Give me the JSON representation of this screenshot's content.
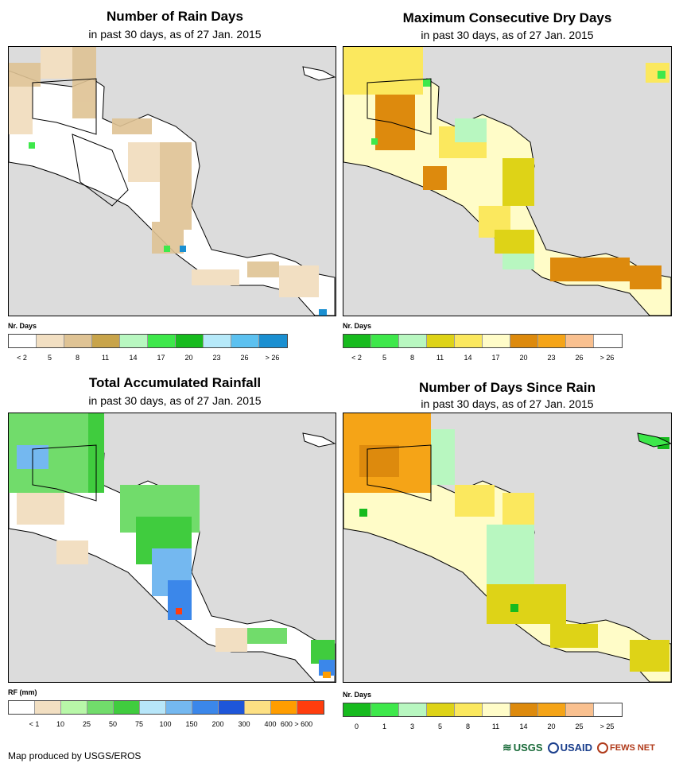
{
  "panels": [
    {
      "title": "Number of Rain Days",
      "subtitle": "in past 30 days, as of 27 Jan. 2015",
      "legend_label": "Nr. Days",
      "legend_colors": [
        "#ffffff",
        "#f2dfc2",
        "#dfc394",
        "#c8a44a",
        "#b8f7c0",
        "#3ee84b",
        "#17bb1e",
        "#b6e9f9",
        "#5cc1f0",
        "#1a8fd1"
      ],
      "legend_ticks": [
        "< 2",
        "5",
        "8",
        "11",
        "14",
        "17",
        "20",
        "23",
        "26",
        "> 26"
      ]
    },
    {
      "title": "Maximum Consecutive Dry Days",
      "subtitle": "in past 30 days, as of 27 Jan. 2015",
      "legend_label": "Nr. Days",
      "legend_colors": [
        "#17bb1e",
        "#3ee84b",
        "#b8f7c0",
        "#ded317",
        "#fbe85e",
        "#fffcc8",
        "#dd8a0d",
        "#f5a417",
        "#f9c08f",
        "#ffffff"
      ],
      "legend_ticks": [
        "< 2",
        "5",
        "8",
        "11",
        "14",
        "17",
        "20",
        "23",
        "26",
        "> 26"
      ]
    },
    {
      "title": "Total Accumulated Rainfall",
      "subtitle": "in past 30 days, as of 27 Jan. 2015",
      "legend_label": "RF (mm)",
      "legend_colors": [
        "#ffffff",
        "#f2dfc2",
        "#b8f7a8",
        "#71dc6b",
        "#40cc3e",
        "#b7e6f9",
        "#74b8f0",
        "#3b87ea",
        "#1e56d9",
        "#fde083",
        "#ff9d00",
        "#ff3d0d"
      ],
      "legend_ticks": [
        "< 1",
        "10",
        "25",
        "50",
        "75",
        "100",
        "150",
        "200",
        "300",
        "400",
        "600 > 600"
      ]
    },
    {
      "title": "Number of Days Since Rain",
      "subtitle": "in past 30 days, as of 27 Jan. 2015",
      "legend_label": "Nr. Days",
      "legend_colors": [
        "#17bb1e",
        "#3ee84b",
        "#b8f7c0",
        "#ded317",
        "#fbe85e",
        "#fffcc8",
        "#dd8a0d",
        "#f5a417",
        "#f9c08f",
        "#ffffff"
      ],
      "legend_ticks": [
        "0",
        "1",
        "3",
        "5",
        "8",
        "11",
        "14",
        "20",
        "25",
        "> 25"
      ]
    }
  ],
  "credit": "Map produced by USGS/EROS",
  "logos": [
    "USGS",
    "USAID",
    "FEWS NET"
  ]
}
